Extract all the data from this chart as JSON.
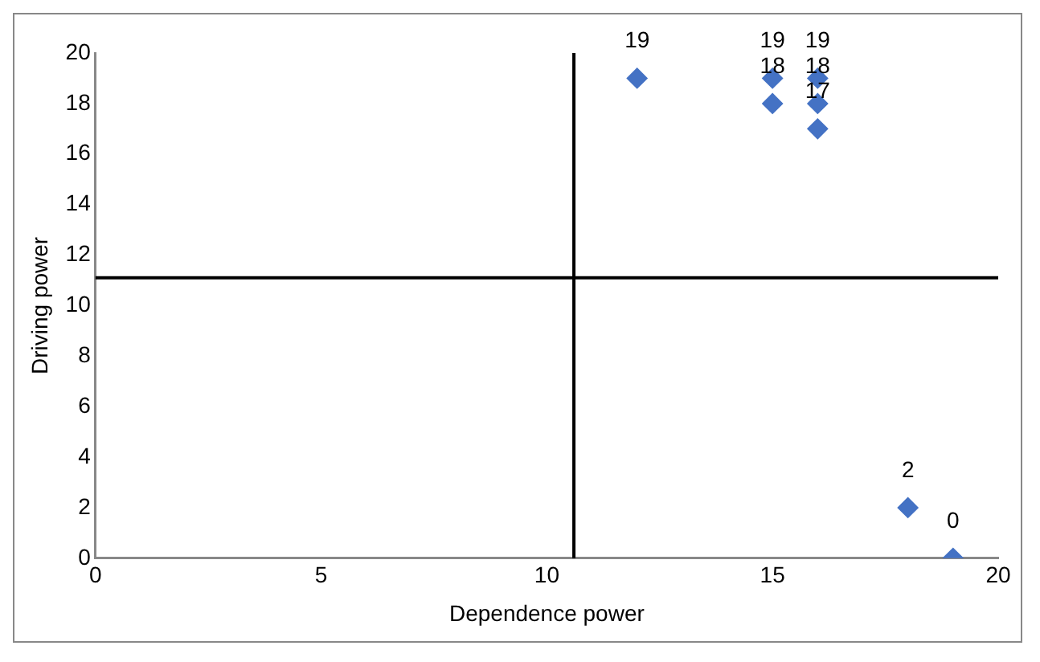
{
  "chart_data": {
    "type": "scatter",
    "xlabel": "Dependence power",
    "ylabel": "Driving power",
    "x": [
      12,
      15,
      15,
      16,
      16,
      16,
      18,
      19
    ],
    "series": [
      {
        "color": "#4472c4",
        "values": [
          19,
          19,
          18,
          19,
          18,
          17,
          2,
          0
        ]
      }
    ],
    "xlim": [
      0,
      20
    ],
    "xticks": [
      0,
      5,
      10,
      15,
      20
    ],
    "ylim": [
      0,
      20
    ],
    "yticks": [
      0,
      2,
      4,
      6,
      8,
      10,
      12,
      14,
      16,
      18,
      20
    ],
    "ref_lines": [
      {
        "axis": "x",
        "value": 10.6,
        "color": "#000000"
      },
      {
        "axis": "y",
        "value": 11.1,
        "color": "#000000"
      }
    ],
    "data_labels": true,
    "grid": false,
    "legend": false,
    "marker": "diamond"
  }
}
